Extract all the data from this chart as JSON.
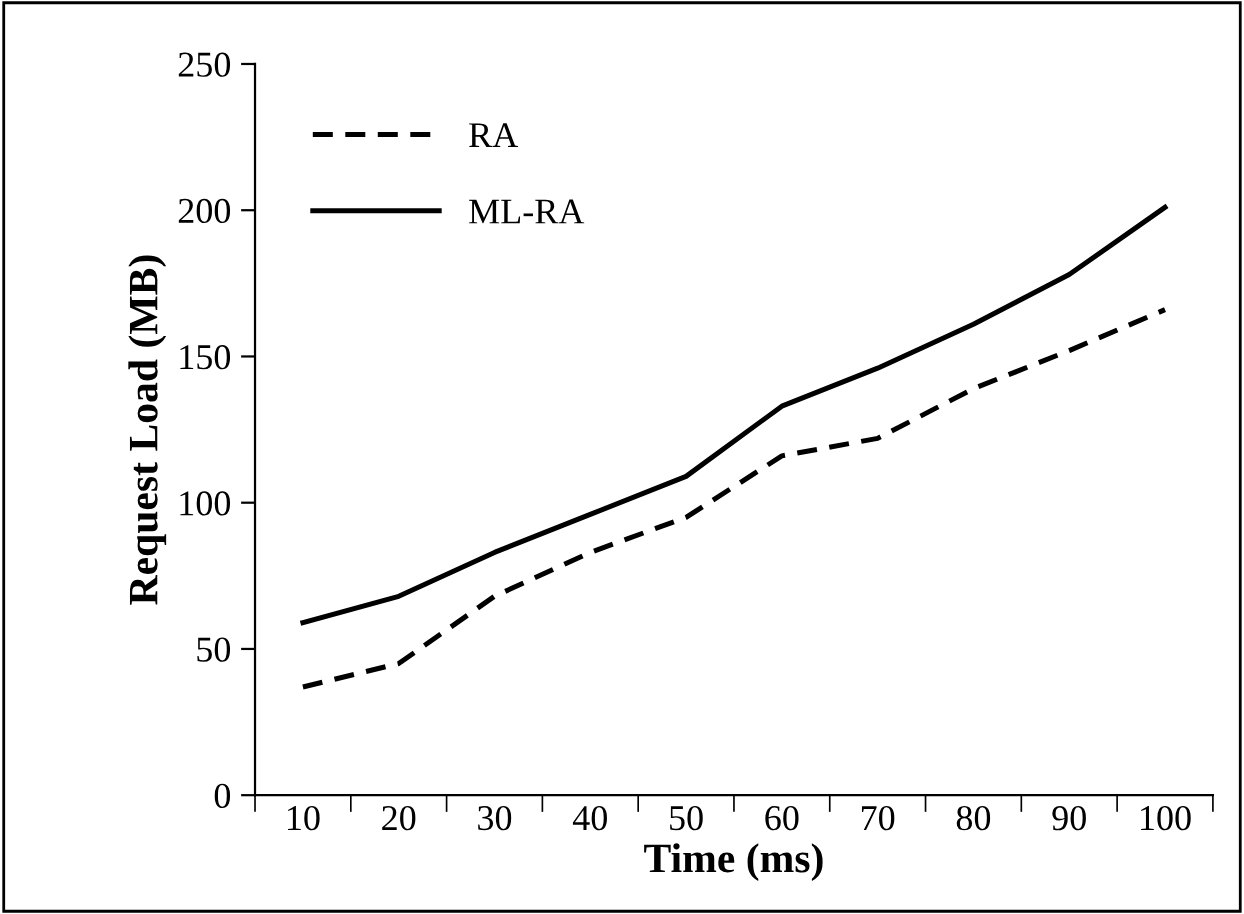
{
  "chart_data": {
    "type": "line",
    "xlabel": "Time (ms)",
    "ylabel": "Request Load (MB)",
    "categories": [
      "10",
      "20",
      "30",
      "40",
      "50",
      "60",
      "70",
      "80",
      "90",
      "100"
    ],
    "series": [
      {
        "name": "RA",
        "color": "#000000",
        "line_style": "dashed",
        "values": [
          37,
          45,
          68,
          83,
          95,
          116,
          122,
          139,
          152,
          166
        ]
      },
      {
        "name": "ML-RA",
        "color": "#000000",
        "line_style": "solid",
        "values": [
          59,
          68,
          83,
          96,
          109,
          133,
          146,
          161,
          178,
          201
        ]
      }
    ],
    "ylim": [
      0,
      250
    ],
    "yticks": [
      0,
      50,
      100,
      150,
      200,
      250
    ],
    "grid": false,
    "legend": "top left",
    "marker": "none"
  }
}
